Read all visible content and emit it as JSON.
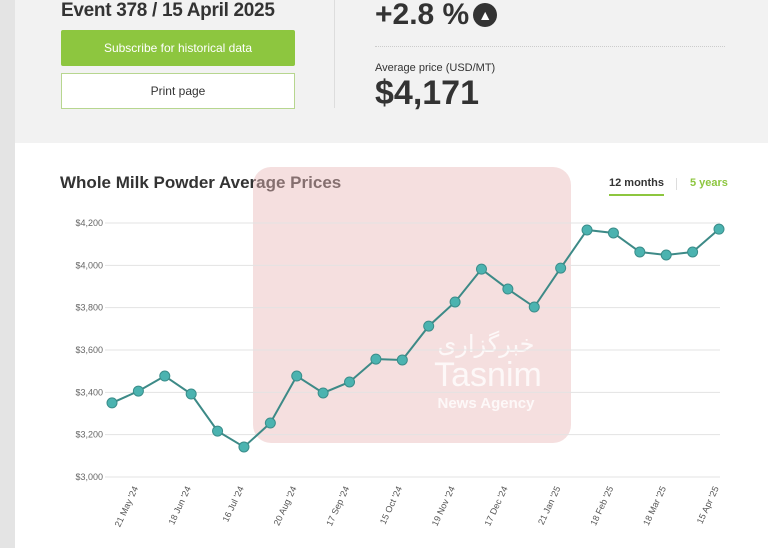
{
  "header": {
    "event": "Event 378 / 15 April 2025",
    "subscribe_label": "Subscribe for historical data",
    "print_label": "Print page",
    "change": "+2.8 %",
    "change_icon": "arrow-up-circle-icon",
    "avg_label": "Average price (USD/MT)",
    "avg_value": "$4,171"
  },
  "tabs": {
    "active": "12 months",
    "other": "5 years"
  },
  "colors": {
    "accent": "#8dc63f",
    "line": "#3d8a87",
    "marker": "#4bb3b0"
  },
  "watermark": {
    "logo_text": "Tasnim",
    "logo_sub": "News Agency",
    "logo_fa": "خبرگزاری"
  },
  "chart_data": {
    "type": "line",
    "title": "Whole Milk Powder Average Prices",
    "ylim": [
      3000,
      4200
    ],
    "yticks": [
      "$3,000",
      "$3,200",
      "$3,400",
      "$3,600",
      "$3,800",
      "$4,000",
      "$4,200"
    ],
    "ytick_values": [
      3000,
      3200,
      3400,
      3600,
      3800,
      4000,
      4200
    ],
    "xtick_labels": [
      "21 May '24",
      "18 Jun '24",
      "16 Jul '24",
      "20 Aug '24",
      "17 Sep '24",
      "15 Oct '24",
      "19 Nov '24",
      "17 Dec '24",
      "21 Jan '25",
      "18 Feb '25",
      "18 Mar '25",
      "15 Apr '25"
    ],
    "values": [
      3350,
      3406,
      3477,
      3392,
      3217,
      3142,
      3255,
      3477,
      3397,
      3449,
      3557,
      3553,
      3713,
      3827,
      3982,
      3888,
      3803,
      3987,
      4167,
      4153,
      4063,
      4049,
      4063,
      4171
    ],
    "grid": true,
    "legend": "none"
  }
}
